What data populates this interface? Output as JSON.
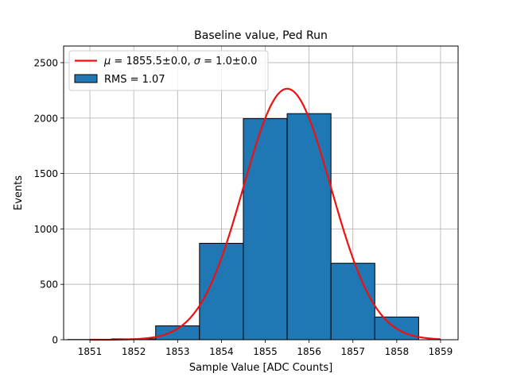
{
  "chart_data": {
    "type": "bar",
    "title": "Baseline value, Ped Run",
    "xlabel": "Sample Value [ADC Counts]",
    "ylabel": "Events",
    "xlim": [
      1850.4,
      1859.4
    ],
    "ylim": [
      0,
      2650
    ],
    "xticks": [
      1851,
      1852,
      1853,
      1854,
      1855,
      1856,
      1857,
      1858,
      1859
    ],
    "yticks": [
      0,
      500,
      1000,
      1500,
      2000,
      2500
    ],
    "grid": true,
    "legend_position": "top-left",
    "histogram": {
      "name": "RMS = 1.07",
      "bin_edges": [
        1850.5,
        1851.5,
        1852.5,
        1853.5,
        1854.5,
        1855.5,
        1856.5,
        1857.5,
        1858.5
      ],
      "values": [
        2,
        8,
        125,
        870,
        1995,
        2040,
        690,
        205
      ],
      "color": "#1f77b4",
      "edge_color": "#000000"
    },
    "fit": {
      "name_mu_symbol": "μ",
      "name_mu_rest": " = 1855.5±0.0, ",
      "name_sigma_symbol": "σ",
      "name_sigma_rest": " = 1.0±0.0",
      "mean": 1855.5,
      "sigma": 1.0,
      "amplitude": 2265,
      "x_range": [
        1851,
        1859
      ],
      "color": "#ee1111"
    }
  }
}
